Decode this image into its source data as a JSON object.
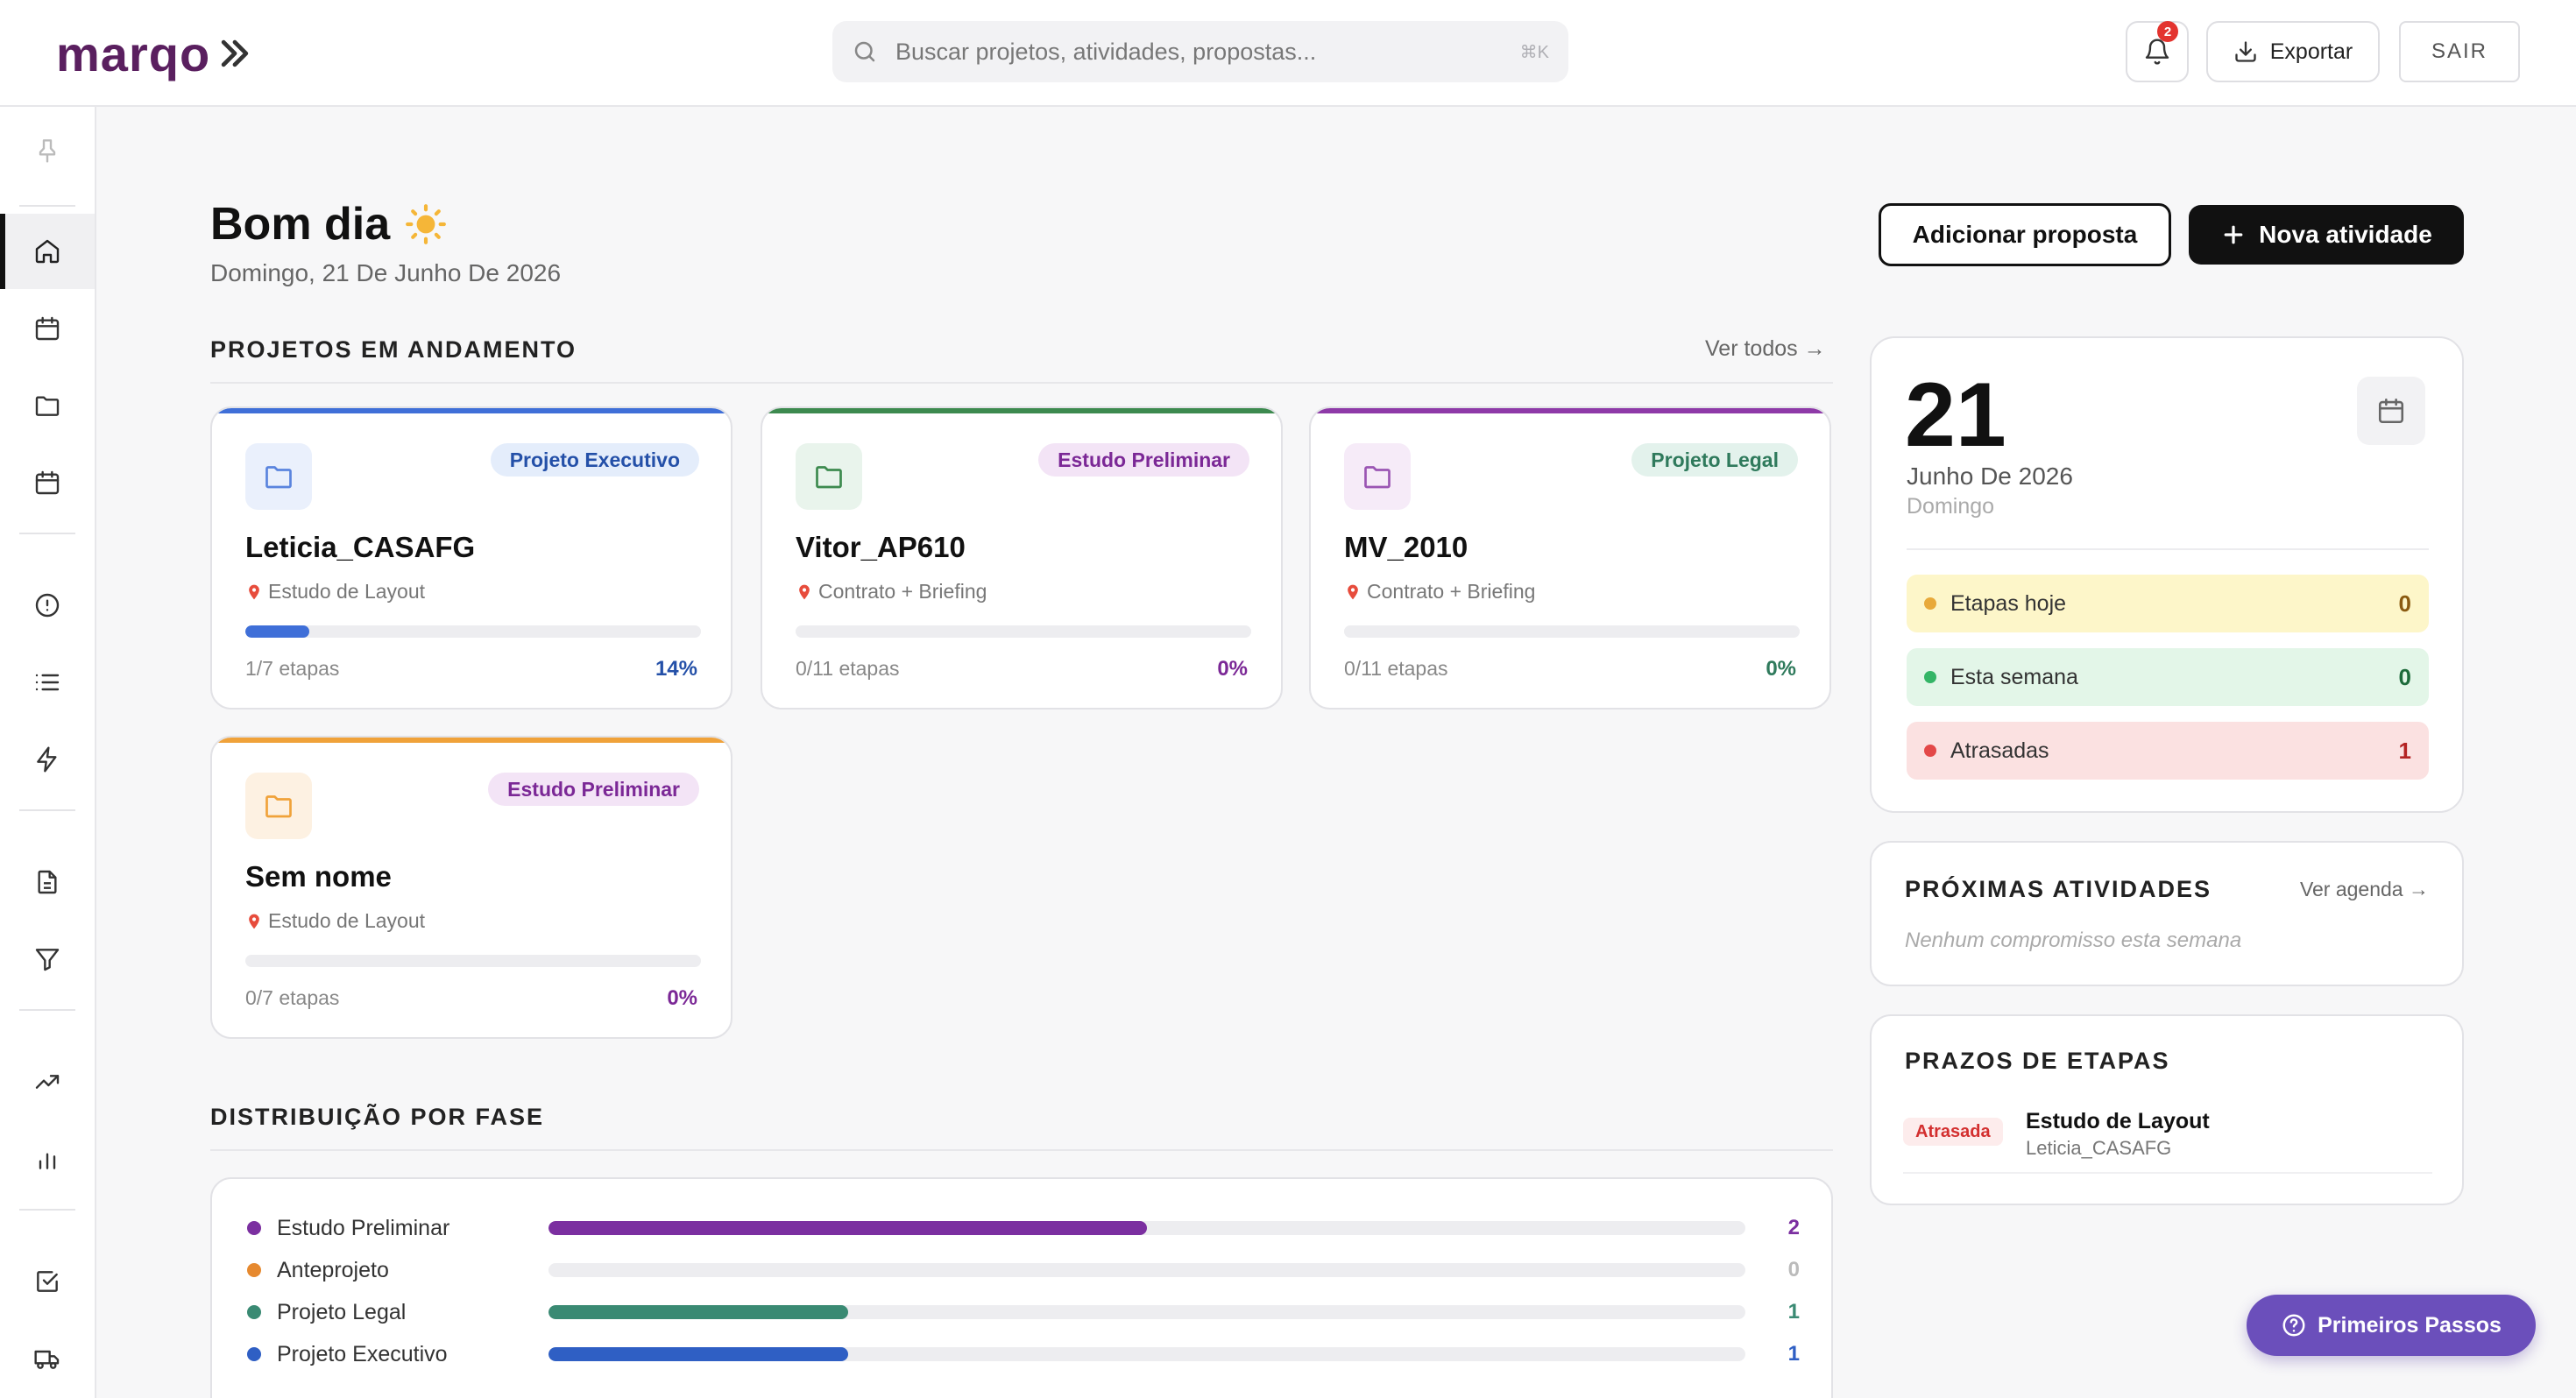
{
  "header": {
    "logo_text": "marqo",
    "search_placeholder": "Buscar projetos, atividades, propostas...",
    "search_shortcut": "⌘K",
    "notifications_count": "2",
    "export_label": "Exportar",
    "logout_label": "SAIR"
  },
  "sidebar": {
    "items": [
      "pin-icon",
      "home-icon",
      "calendar-icon",
      "folder-icon",
      "calendar-alt-icon",
      "alert-circle-icon",
      "list-icon",
      "bolt-icon",
      "document-icon",
      "filter-icon",
      "trending-up-icon",
      "bar-chart-icon",
      "check-square-icon",
      "truck-icon"
    ],
    "active": "home-icon"
  },
  "main": {
    "greeting": "Bom dia",
    "date": "Domingo, 21 De Junho De 2026",
    "add_proposal_label": "Adicionar proposta",
    "new_activity_label": "Nova atividade",
    "projects_title": "PROJETOS EM ANDAMENTO",
    "projects_link": "Ver todos →",
    "projects": [
      {
        "name": "Leticia_CASAFG",
        "tag": "Projeto Executivo",
        "phase": "Estudo de Layout",
        "steps": "1/7 etapas",
        "percent": "14%",
        "progress": 0.14,
        "accent": "#3f6fd8"
      },
      {
        "name": "Vitor_AP610",
        "tag": "Estudo Preliminar",
        "phase": "Contrato + Briefing",
        "steps": "0/11 etapas",
        "percent": "0%",
        "progress": 0,
        "accent": "#3d8a4f"
      },
      {
        "name": "MV_2010",
        "tag": "Projeto Legal",
        "phase": "Contrato + Briefing",
        "steps": "0/11 etapas",
        "percent": "0%",
        "progress": 0,
        "accent": "#8e3aa8"
      },
      {
        "name": "Sem nome",
        "tag": "Estudo Preliminar",
        "phase": "Estudo de Layout",
        "steps": "0/7 etapas",
        "percent": "0%",
        "progress": 0,
        "accent": "#f0a23a"
      }
    ],
    "distribution_title": "DISTRIBUIÇÃO POR FASE",
    "distribution": [
      {
        "label": "Estudo Preliminar",
        "value": "2",
        "fraction": 0.5,
        "color": "#7b2fa0"
      },
      {
        "label": "Anteprojeto",
        "value": "0",
        "fraction": 0,
        "color": "#e6892f"
      },
      {
        "label": "Projeto Legal",
        "value": "1",
        "fraction": 0.25,
        "color": "#3a8a73"
      },
      {
        "label": "Projeto Executivo",
        "value": "1",
        "fraction": 0.25,
        "color": "#2f5fc4"
      }
    ]
  },
  "calendar": {
    "day": "21",
    "month_year": "Junho De 2026",
    "weekday": "Domingo",
    "stats": [
      {
        "label": "Etapas hoje",
        "value": "0",
        "bg": "#fdf6c9",
        "dot": "#e8a93a",
        "val_color": "#8a5a10"
      },
      {
        "label": "Esta semana",
        "value": "0",
        "bg": "#e3f6e8",
        "dot": "#34b566",
        "val_color": "#1d6b3a"
      },
      {
        "label": "Atrasadas",
        "value": "1",
        "bg": "#fbe1e1",
        "dot": "#e34848",
        "val_color": "#b42323"
      }
    ]
  },
  "upcoming": {
    "title": "PRÓXIMAS ATIVIDADES",
    "link": "Ver agenda →",
    "empty": "Nenhum compromisso esta semana"
  },
  "deadlines": {
    "title": "PRAZOS DE ETAPAS",
    "items": [
      {
        "badge": "Atrasada",
        "title": "Estudo de Layout",
        "subtitle": "Leticia_CASAFG"
      }
    ]
  },
  "help": {
    "label": "Primeiros Passos"
  }
}
